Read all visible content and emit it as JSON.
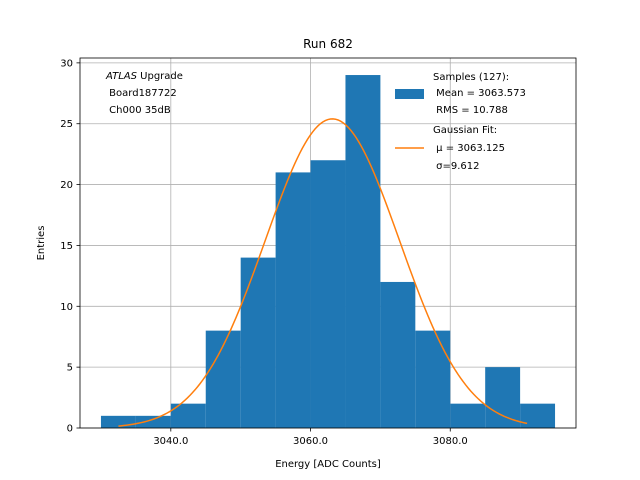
{
  "chart_data": {
    "type": "bar",
    "title": "Run 682",
    "xlabel": "Energy [ADC Counts]",
    "ylabel": "Entries",
    "xlim": [
      3027,
      3098
    ],
    "ylim": [
      0,
      30.4
    ],
    "grid": true,
    "legend_position": "top-right",
    "x_ticks": [
      3040,
      3060,
      3080
    ],
    "x_tick_labels": [
      "3040.0",
      "3060.0",
      "3080.0"
    ],
    "y_ticks": [
      0,
      5,
      10,
      15,
      20,
      25,
      30
    ],
    "y_tick_labels": [
      "0",
      "5",
      "10",
      "15",
      "20",
      "25",
      "30"
    ],
    "histogram": {
      "name": "Samples (127):",
      "color": "#1f77b4",
      "bin_edges": [
        3030,
        3035,
        3040,
        3045,
        3050,
        3055,
        3060,
        3065,
        3070,
        3075,
        3080,
        3085,
        3090,
        3095
      ],
      "counts": [
        1,
        1,
        2,
        8,
        14,
        21,
        22,
        29,
        12,
        8,
        2,
        5,
        2
      ],
      "legend_lines": [
        "Samples (127):",
        " Mean = 3063.573",
        " RMS = 10.788"
      ]
    },
    "fit": {
      "name": "Gaussian Fit:",
      "color": "#ff7f0e",
      "mu": 3063.125,
      "sigma": 9.612,
      "amplitude": 25.4,
      "x_range": [
        3032.5,
        3091
      ],
      "legend_lines": [
        "Gaussian Fit:",
        " μ = 3063.125",
        " σ=9.612"
      ]
    },
    "annotation": {
      "italic": "ATLAS",
      "upright": " Upgrade",
      "lines": [
        " Board187722",
        " Ch000 35dB"
      ]
    }
  }
}
